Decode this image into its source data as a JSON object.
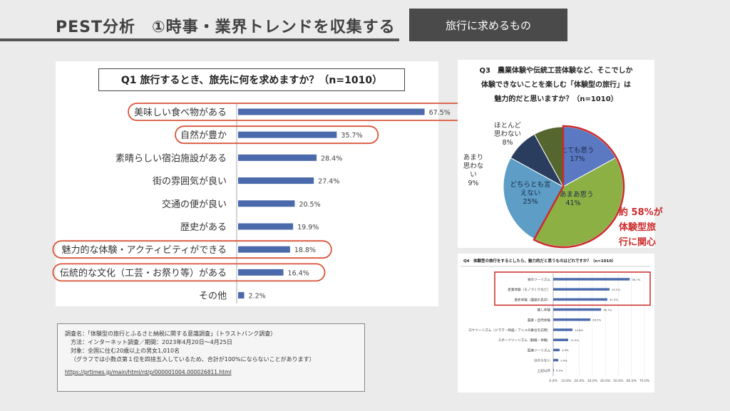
{
  "header": {
    "title": "PEST分析　①時事・業界トレンドを収集する",
    "section_label": "旅行に求めるもの"
  },
  "source": {
    "line1": "調査名：「体験型の旅行とふるさと納税に関する意識調査」（トラストバンク調査）",
    "line2": "方法：インターネット調査／期間：2023年4月20日〜4月25日",
    "line3": "対象：全国に住む20歳以上の男女1,010名",
    "line4": "（グラフでは小数点第１位を四捨五入しているため、合計が100%にならないことがあります）",
    "url": "https://prtimes.jp/main/html/rd/p/000001004.000026811.html"
  },
  "chart_data": [
    {
      "id": "q1",
      "type": "bar",
      "orientation": "horizontal",
      "title": "Q1 旅行するとき、旅先に何を求めますか？（n=1010）",
      "categories": [
        "美味しい食べ物がある",
        "自然が豊か",
        "素晴らしい宿泊施設がある",
        "街の雰囲気が良い",
        "交通の便が良い",
        "歴史がある",
        "魅力的な体験・アクティビティができる",
        "伝統的な文化（工芸・お祭り等）がある",
        "その他"
      ],
      "values": [
        67.5,
        35.7,
        28.4,
        27.4,
        20.5,
        19.9,
        18.8,
        16.4,
        2.2
      ],
      "value_labels": [
        "67.5%",
        "35.7%",
        "28.4%",
        "27.4%",
        "20.5%",
        "19.9%",
        "18.8%",
        "16.4%",
        "2.2%"
      ],
      "highlighted": [
        0,
        1,
        6,
        7
      ],
      "bar_color": "#4a6aab",
      "highlight_color": "#d9553a",
      "xlim": [
        0,
        80
      ]
    },
    {
      "id": "q3",
      "type": "pie",
      "title_lines": [
        "Q3　農業体験や伝統工芸体験など、そこでしか",
        "体験できないことを楽しむ「体験型の旅行」は",
        "魅力的だと思いますか？（n=1010）"
      ],
      "slices": [
        {
          "label_lines": [
            "とても思う",
            "17%"
          ],
          "value": 17,
          "color": "#5b78c2"
        },
        {
          "label_lines": [
            "まあまあ思う",
            "41%"
          ],
          "value": 41,
          "color": "#8db045"
        },
        {
          "label_lines": [
            "どちらとも言",
            "えない",
            "25%"
          ],
          "value": 25,
          "color": "#5d9dc6"
        },
        {
          "label_lines": [
            "あまり",
            "思わな",
            "い",
            "9%"
          ],
          "value": 9,
          "color": "#2a3d5e"
        },
        {
          "label_lines": [
            "ほとんど",
            "思わない",
            "8%"
          ],
          "value": 8,
          "color": "#55662f"
        }
      ],
      "annotation_lines": [
        "約 58%が",
        "体験型旅",
        "行に関心"
      ],
      "annotation_color": "#cc2a2a"
    },
    {
      "id": "q4",
      "type": "bar",
      "orientation": "horizontal",
      "title": "Q4　体験型の旅行をするとしたら、魅力的だと思うものはどれですか？（n=1010）",
      "categories": [
        "食のツーリズム",
        "産業体験（モノづくりなど）",
        "歴史体験（遺跡の見学）",
        "癒し体験",
        "農業・自然体験",
        "ロケツーリズム（ドラマ・映画・アニメの舞台を訪問）",
        "スポーツツーリズム（観戦・体験）",
        "医療ツーリズム",
        "分からない",
        "上記以外"
      ],
      "values": [
        58.7,
        43.2,
        41.5,
        36.7,
        28.5,
        14.8,
        11.5,
        4.9,
        3.9,
        0.5
      ],
      "value_labels": [
        "58.7%",
        "43.2%",
        "41.5%",
        "36.7%",
        "28.5%",
        "14.8%",
        "11.5%",
        "4.9%",
        "3.9%",
        "0.5%"
      ],
      "highlighted": [
        0,
        1,
        2
      ],
      "xticks": [
        "0.0%",
        "10.0%",
        "20.0%",
        "30.0%",
        "40.0%",
        "50.0%",
        "60.0%",
        "70.0%"
      ],
      "xlim": [
        0,
        70
      ],
      "bar_color": "#4a6aab",
      "highlight_color": "#cc2a2a"
    }
  ]
}
